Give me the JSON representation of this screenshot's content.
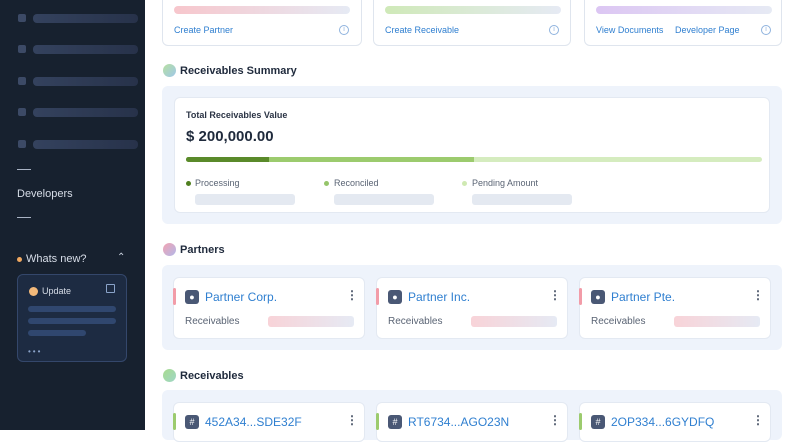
{
  "sidebar": {
    "developers": "Developers",
    "whats_new": "Whats new?",
    "update": "Update"
  },
  "quick_actions": [
    "Create Partner",
    "Create Receivable",
    "View Documents",
    "Developer Page"
  ],
  "summary": {
    "heading": "Receivables Summary",
    "label": "Total Receivables Value",
    "value": "$ 200,000.00",
    "legend": [
      "Processing",
      "Reconciled",
      "Pending Amount"
    ]
  },
  "partners": {
    "heading": "Partners",
    "items": [
      {
        "name": "Partner Corp.",
        "label": "Receivables"
      },
      {
        "name": "Partner Inc.",
        "label": "Receivables"
      },
      {
        "name": "Partner Pte.",
        "label": "Receivables"
      }
    ]
  },
  "receivables": {
    "heading": "Receivables",
    "items": [
      "452A34...SDE32F",
      "RT6734...AGO23N",
      "2OP334...6GYDFQ"
    ]
  }
}
